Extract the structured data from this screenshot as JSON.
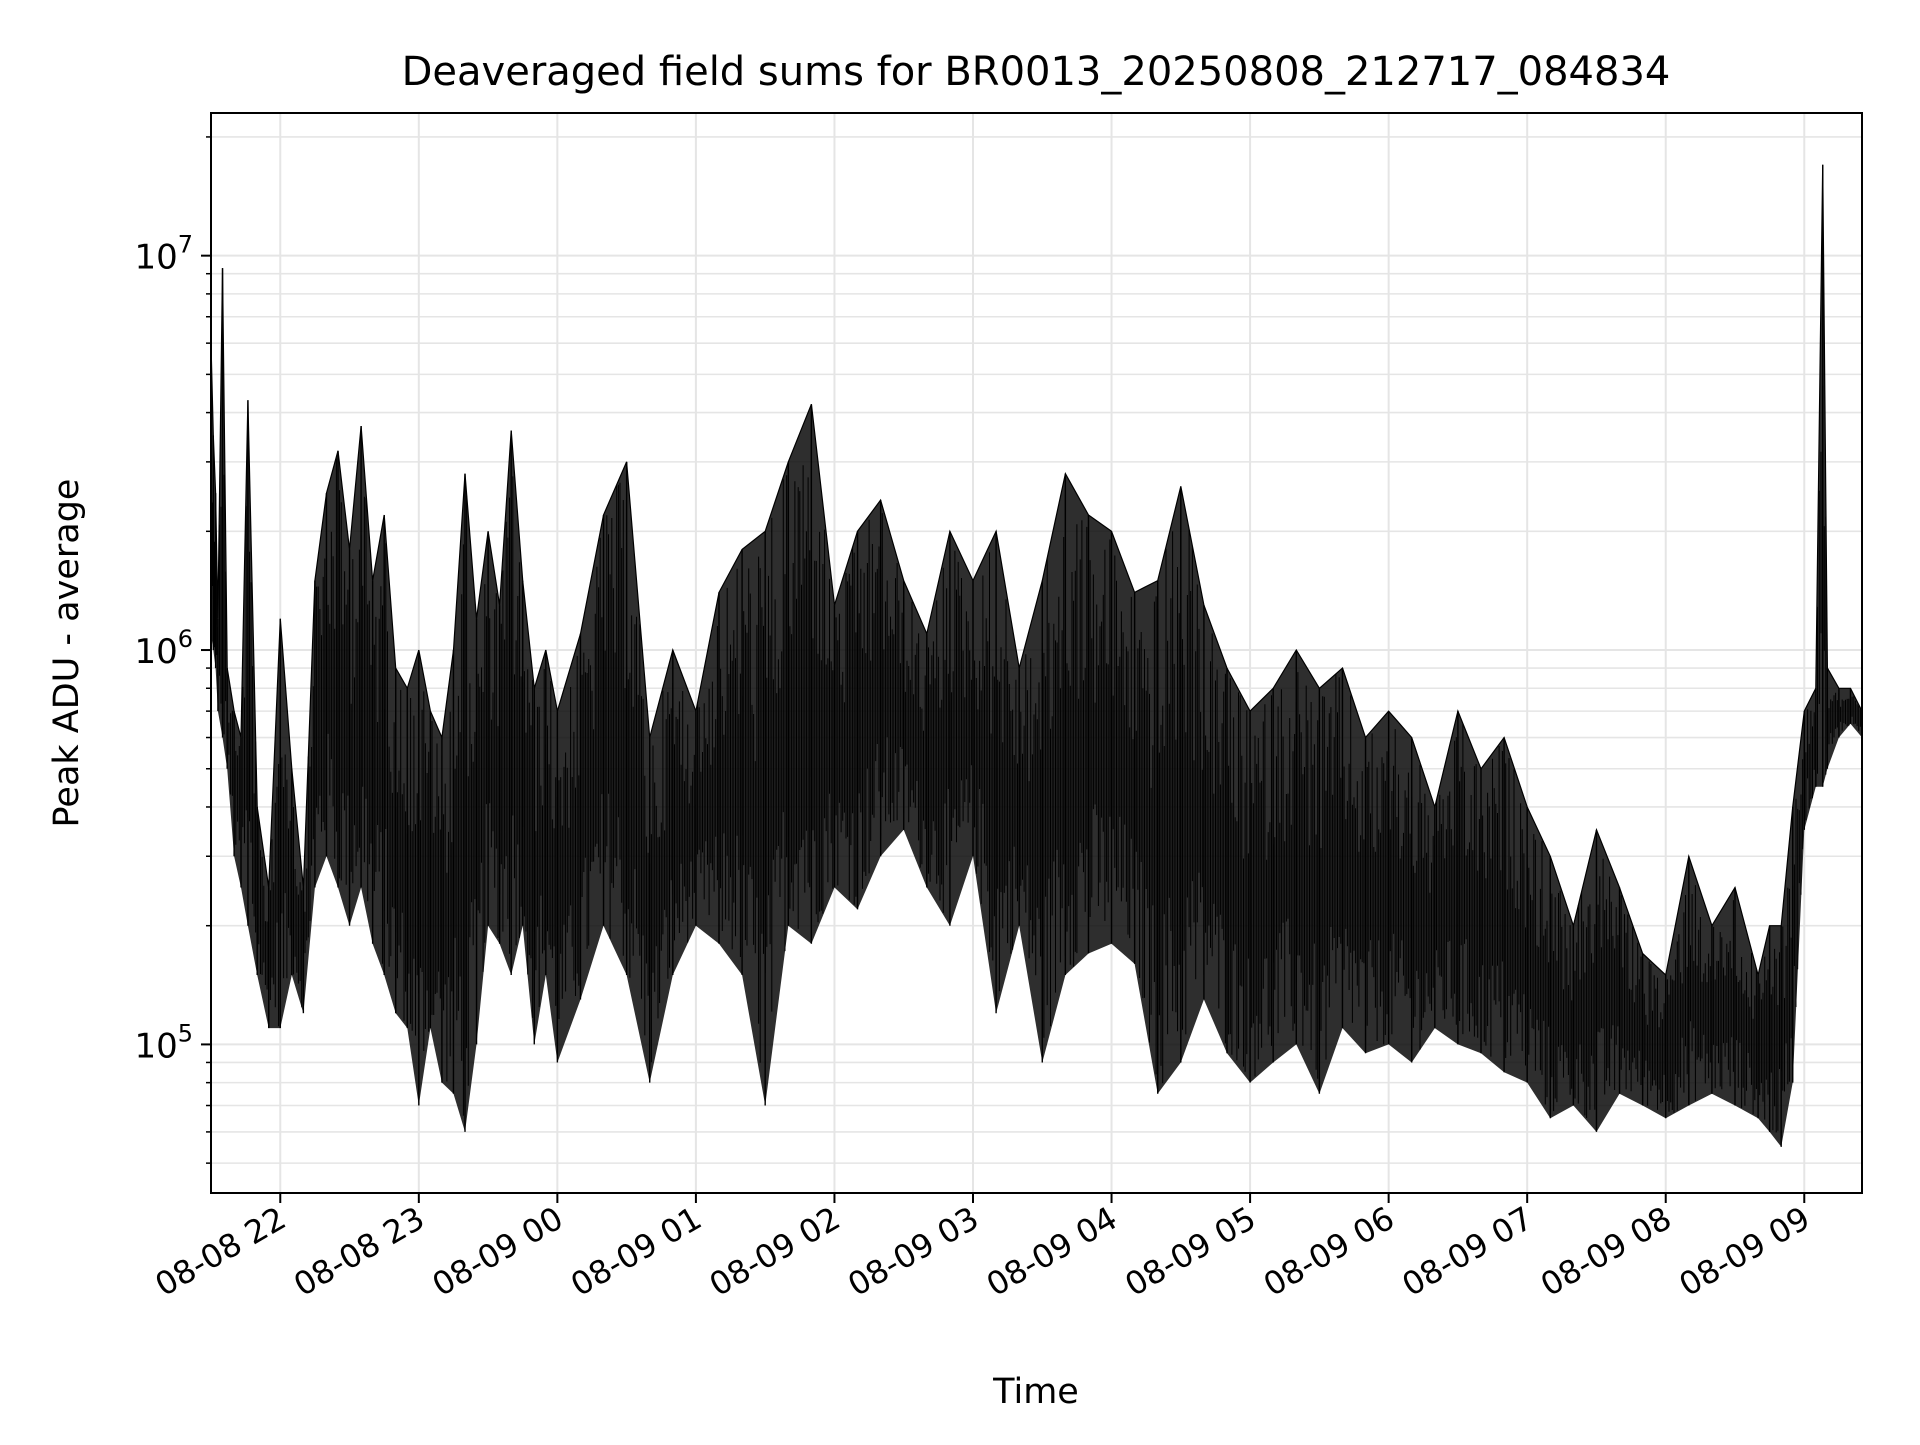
{
  "chart_data": {
    "type": "line",
    "title": "Deaveraged field sums for BR0013_20250808_212717_084834",
    "xlabel": "Time",
    "ylabel": "Peak ADU - average",
    "y_scale": "log",
    "ylim": [
      42000,
      23000000
    ],
    "xlim": [
      "2025-08-08 21:30",
      "2025-08-09 09:25"
    ],
    "grid": true,
    "grid_color": "#e5e5e5",
    "line_color": "#000000",
    "x_ticks": [
      {
        "t": "2025-08-08 22:00",
        "label": "08-08 22"
      },
      {
        "t": "2025-08-08 23:00",
        "label": "08-08 23"
      },
      {
        "t": "2025-08-09 00:00",
        "label": "08-09 00"
      },
      {
        "t": "2025-08-09 01:00",
        "label": "08-09 01"
      },
      {
        "t": "2025-08-09 02:00",
        "label": "08-09 02"
      },
      {
        "t": "2025-08-09 03:00",
        "label": "08-09 03"
      },
      {
        "t": "2025-08-09 04:00",
        "label": "08-09 04"
      },
      {
        "t": "2025-08-09 05:00",
        "label": "08-09 05"
      },
      {
        "t": "2025-08-09 06:00",
        "label": "08-09 06"
      },
      {
        "t": "2025-08-09 07:00",
        "label": "08-09 07"
      },
      {
        "t": "2025-08-09 08:00",
        "label": "08-09 08"
      },
      {
        "t": "2025-08-09 09:00",
        "label": "08-09 09"
      }
    ],
    "y_ticks": [
      {
        "value": 100000,
        "base": "10",
        "exp": "5"
      },
      {
        "value": 1000000,
        "base": "10",
        "exp": "6"
      },
      {
        "value": 10000000,
        "base": "10",
        "exp": "7"
      }
    ],
    "series": [
      {
        "x": [
          "2025-08-08 21:30",
          "2025-08-08 21:31",
          "2025-08-08 21:32",
          "2025-08-08 21:33",
          "2025-08-08 21:35",
          "2025-08-08 21:37",
          "2025-08-08 21:40",
          "2025-08-08 21:43",
          "2025-08-08 21:46",
          "2025-08-08 21:50",
          "2025-08-08 21:55",
          "2025-08-08 22:00",
          "2025-08-08 22:05",
          "2025-08-08 22:10",
          "2025-08-08 22:15",
          "2025-08-08 22:20",
          "2025-08-08 22:25",
          "2025-08-08 22:30",
          "2025-08-08 22:35",
          "2025-08-08 22:40",
          "2025-08-08 22:45",
          "2025-08-08 22:50",
          "2025-08-08 22:55",
          "2025-08-08 23:00",
          "2025-08-08 23:05",
          "2025-08-08 23:10",
          "2025-08-08 23:15",
          "2025-08-08 23:20",
          "2025-08-08 23:25",
          "2025-08-08 23:30",
          "2025-08-08 23:35",
          "2025-08-08 23:40",
          "2025-08-08 23:45",
          "2025-08-08 23:50",
          "2025-08-08 23:55",
          "2025-08-09 00:00",
          "2025-08-09 00:10",
          "2025-08-09 00:20",
          "2025-08-09 00:30",
          "2025-08-09 00:40",
          "2025-08-09 00:50",
          "2025-08-09 01:00",
          "2025-08-09 01:10",
          "2025-08-09 01:20",
          "2025-08-09 01:30",
          "2025-08-09 01:40",
          "2025-08-09 01:50",
          "2025-08-09 02:00",
          "2025-08-09 02:10",
          "2025-08-09 02:20",
          "2025-08-09 02:30",
          "2025-08-09 02:40",
          "2025-08-09 02:50",
          "2025-08-09 03:00",
          "2025-08-09 03:10",
          "2025-08-09 03:20",
          "2025-08-09 03:30",
          "2025-08-09 03:40",
          "2025-08-09 03:50",
          "2025-08-09 04:00",
          "2025-08-09 04:10",
          "2025-08-09 04:20",
          "2025-08-09 04:30",
          "2025-08-09 04:40",
          "2025-08-09 04:50",
          "2025-08-09 05:00",
          "2025-08-09 05:10",
          "2025-08-09 05:20",
          "2025-08-09 05:30",
          "2025-08-09 05:40",
          "2025-08-09 05:50",
          "2025-08-09 06:00",
          "2025-08-09 06:10",
          "2025-08-09 06:20",
          "2025-08-09 06:30",
          "2025-08-09 06:40",
          "2025-08-09 06:50",
          "2025-08-09 07:00",
          "2025-08-09 07:10",
          "2025-08-09 07:20",
          "2025-08-09 07:30",
          "2025-08-09 07:40",
          "2025-08-09 07:50",
          "2025-08-09 08:00",
          "2025-08-09 08:10",
          "2025-08-09 08:20",
          "2025-08-09 08:30",
          "2025-08-09 08:40",
          "2025-08-09 08:45",
          "2025-08-09 08:50",
          "2025-08-09 08:55",
          "2025-08-09 09:00",
          "2025-08-09 09:05",
          "2025-08-09 09:08",
          "2025-08-09 09:10",
          "2025-08-09 09:15",
          "2025-08-09 09:20",
          "2025-08-09 09:25"
        ],
        "y": [
          6000000,
          3500000,
          2500000,
          1200000,
          9300000,
          900000,
          700000,
          600000,
          4300000,
          400000,
          250000,
          1200000,
          500000,
          250000,
          1500000,
          2500000,
          3200000,
          1800000,
          3700000,
          1500000,
          2200000,
          900000,
          800000,
          1000000,
          700000,
          600000,
          1000000,
          2800000,
          1200000,
          2000000,
          1300000,
          3600000,
          1500000,
          800000,
          1000000,
          700000,
          1100000,
          2200000,
          3000000,
          600000,
          1000000,
          700000,
          1400000,
          1800000,
          2000000,
          3000000,
          4200000,
          1300000,
          2000000,
          2400000,
          1500000,
          1100000,
          2000000,
          1500000,
          2000000,
          900000,
          1500000,
          2800000,
          2200000,
          2000000,
          1400000,
          1500000,
          2600000,
          1300000,
          900000,
          700000,
          800000,
          1000000,
          800000,
          900000,
          600000,
          700000,
          600000,
          400000,
          700000,
          500000,
          600000,
          400000,
          300000,
          200000,
          350000,
          250000,
          170000,
          150000,
          300000,
          200000,
          250000,
          150000,
          200000,
          200000,
          400000,
          700000,
          800000,
          17000000,
          900000,
          800000,
          800000,
          700000
        ],
        "y_min": [
          1100000,
          1000000,
          900000,
          700000,
          600000,
          500000,
          300000,
          250000,
          200000,
          150000,
          110000,
          110000,
          150000,
          120000,
          250000,
          300000,
          250000,
          200000,
          250000,
          180000,
          150000,
          120000,
          110000,
          70000,
          110000,
          80000,
          75000,
          60000,
          100000,
          200000,
          180000,
          150000,
          200000,
          100000,
          150000,
          90000,
          130000,
          200000,
          150000,
          80000,
          150000,
          200000,
          180000,
          150000,
          70000,
          200000,
          180000,
          250000,
          220000,
          300000,
          350000,
          250000,
          200000,
          300000,
          120000,
          200000,
          90000,
          150000,
          170000,
          180000,
          160000,
          75000,
          90000,
          130000,
          95000,
          80000,
          90000,
          100000,
          75000,
          110000,
          95000,
          100000,
          90000,
          110000,
          100000,
          95000,
          85000,
          80000,
          65000,
          70000,
          60000,
          75000,
          70000,
          65000,
          70000,
          75000,
          70000,
          65000,
          60000,
          55000,
          80000,
          350000,
          450000,
          450000,
          500000,
          600000,
          650000,
          600000
        ]
      }
    ]
  }
}
